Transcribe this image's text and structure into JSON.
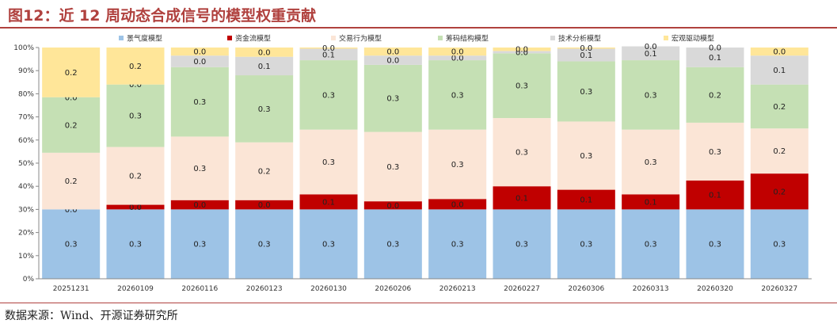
{
  "header": {
    "title": "图12：近 12 周动态合成信号的模型权重贡献"
  },
  "footer": {
    "source": "数据来源：Wind、开源证券研究所"
  },
  "chart_data": {
    "type": "bar",
    "stacked": true,
    "title": "",
    "xlabel": "",
    "ylabel": "",
    "ylim": [
      0,
      1
    ],
    "y_ticks": [
      "0%",
      "10%",
      "20%",
      "30%",
      "40%",
      "50%",
      "60%",
      "70%",
      "80%",
      "90%",
      "100%"
    ],
    "legend_position": "top",
    "grid": false,
    "categories": [
      "20251231",
      "20260109",
      "20260116",
      "20260123",
      "20260130",
      "20260206",
      "20260213",
      "20260227",
      "20260306",
      "20260313",
      "20260320",
      "20260327"
    ],
    "series": [
      {
        "name": "景气度模型",
        "color": "#9dc3e6",
        "values": [
          0.3,
          0.3,
          0.3,
          0.3,
          0.3,
          0.3,
          0.3,
          0.3,
          0.3,
          0.3,
          0.3,
          0.3
        ],
        "labels": [
          "0.3",
          "0.3",
          "0.3",
          "0.3",
          "0.3",
          "0.3",
          "0.3",
          "0.3",
          "0.3",
          "0.3",
          "0.3",
          "0.3"
        ]
      },
      {
        "name": "资金流模型",
        "color": "#c00000",
        "values": [
          0.0,
          0.02,
          0.04,
          0.04,
          0.065,
          0.035,
          0.045,
          0.1,
          0.085,
          0.065,
          0.125,
          0.155
        ],
        "labels": [
          "0.0",
          "0.0",
          "0.0",
          "0.0",
          "0.1",
          "0.0",
          "0.0",
          "0.1",
          "0.1",
          "0.1",
          "0.1",
          "0.2"
        ]
      },
      {
        "name": "交易行为模型",
        "color": "#fbe5d6",
        "values": [
          0.245,
          0.25,
          0.275,
          0.25,
          0.28,
          0.3,
          0.3,
          0.295,
          0.295,
          0.28,
          0.25,
          0.195
        ],
        "labels": [
          "0.2",
          "0.2",
          "0.3",
          "0.2",
          "0.3",
          "0.3",
          "0.3",
          "0.3",
          "0.3",
          "0.3",
          "0.3",
          "0.2"
        ]
      },
      {
        "name": "筹码结构模型",
        "color": "#c5e0b4",
        "values": [
          0.24,
          0.27,
          0.3,
          0.29,
          0.3,
          0.29,
          0.3,
          0.28,
          0.26,
          0.3,
          0.24,
          0.19
        ],
        "labels": [
          "0.2",
          "0.3",
          "0.3",
          "0.3",
          "0.3",
          "0.3",
          "0.3",
          "0.3",
          "0.3",
          "0.3",
          "0.2",
          "0.2"
        ]
      },
      {
        "name": "技术分析模型",
        "color": "#d9d9d9",
        "values": [
          0.0,
          0.0,
          0.05,
          0.08,
          0.05,
          0.04,
          0.02,
          0.01,
          0.055,
          0.06,
          0.085,
          0.125
        ],
        "labels": [
          "0.0",
          "0.0",
          "0.0",
          "0.1",
          "0.1",
          "0.0",
          "0.0",
          "0.0",
          "0.1",
          "0.1",
          "0.1",
          "0.1"
        ]
      },
      {
        "name": "宏观驱动模型",
        "color": "#ffe699",
        "values": [
          0.215,
          0.16,
          0.035,
          0.04,
          0.005,
          0.035,
          0.035,
          0.015,
          0.005,
          0.0,
          0.0,
          0.035
        ],
        "labels": [
          "0.2",
          "0.2",
          "0.0",
          "0.0",
          "0.0",
          "0.0",
          "0.0",
          "0.0",
          "0.0",
          "0.0",
          "0.0",
          "0.0"
        ]
      }
    ]
  }
}
